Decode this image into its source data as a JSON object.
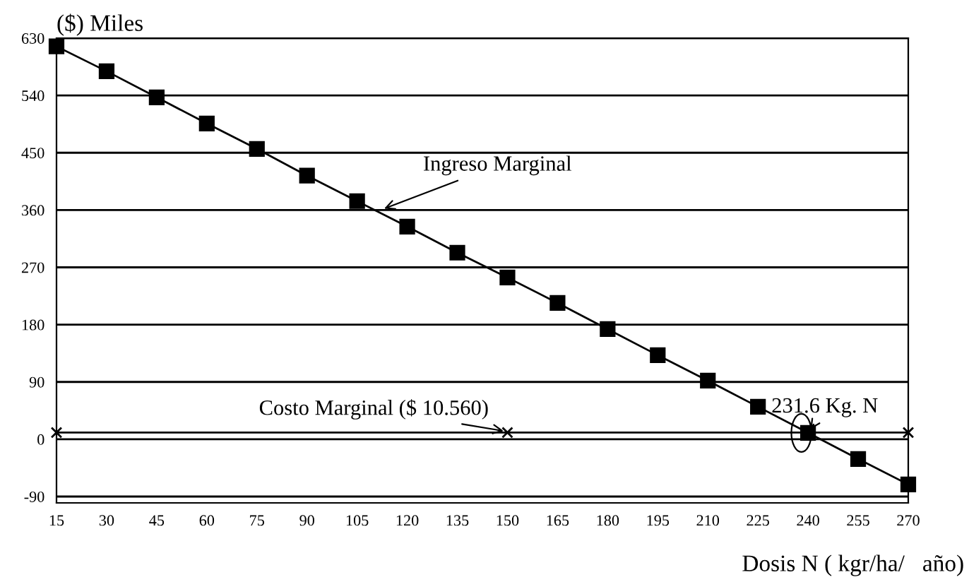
{
  "chart_data": {
    "type": "line",
    "ylabel": "($) Miles",
    "xlabel": "Dosis N ( kgr/ha/   año)",
    "xlim": [
      15,
      270
    ],
    "xticks": [
      15,
      30,
      45,
      60,
      75,
      90,
      105,
      120,
      135,
      150,
      165,
      180,
      195,
      210,
      225,
      240,
      255,
      270
    ],
    "ylim": [
      -100,
      630
    ],
    "yticks": [
      -90,
      0,
      90,
      180,
      270,
      360,
      450,
      540,
      630
    ],
    "grid": "y",
    "legend": false,
    "line_style": "solid",
    "series": [
      {
        "color": "#000000",
        "marker": "square",
        "x": [
          15,
          30,
          45,
          60,
          75,
          90,
          105,
          120,
          135,
          150,
          165,
          180,
          195,
          210,
          225,
          240,
          255,
          270
        ],
        "values": [
          617,
          578,
          537,
          496,
          456,
          414,
          374,
          334,
          293,
          254,
          214,
          173,
          132,
          92,
          51,
          10,
          -31,
          -71
        ]
      },
      {
        "color": "#000000",
        "marker": "cross",
        "x": [
          15,
          150,
          270
        ],
        "values": [
          10.56,
          10.56,
          10.56
        ]
      }
    ],
    "annotations": [
      {
        "text": "Ingreso Marginal",
        "x": 112,
        "y": 360
      },
      {
        "text": "Costo Marginal ($ 10.560)",
        "x": 150,
        "y": 12
      },
      {
        "text": "231.6 Kg. N",
        "x": 240,
        "y": 10
      }
    ]
  }
}
